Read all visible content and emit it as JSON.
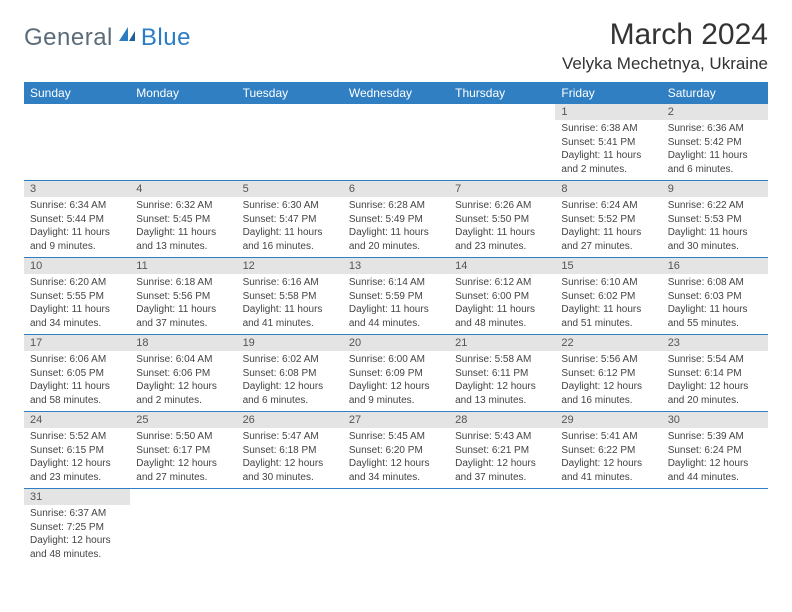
{
  "logo": {
    "text1": "General",
    "text2": "Blue"
  },
  "title": "March 2024",
  "location": "Velyka Mechetnya, Ukraine",
  "colors": {
    "header_bg": "#2f7fc2",
    "header_text": "#ffffff",
    "daynum_bg": "#e4e4e4",
    "row_border": "#2f7fc2",
    "body_text": "#444444",
    "logo_gray": "#5a6b7a",
    "logo_blue": "#2b7cc4"
  },
  "weekdays": [
    "Sunday",
    "Monday",
    "Tuesday",
    "Wednesday",
    "Thursday",
    "Friday",
    "Saturday"
  ],
  "weeks": [
    [
      {
        "n": "",
        "sr": "",
        "ss": "",
        "dl": ""
      },
      {
        "n": "",
        "sr": "",
        "ss": "",
        "dl": ""
      },
      {
        "n": "",
        "sr": "",
        "ss": "",
        "dl": ""
      },
      {
        "n": "",
        "sr": "",
        "ss": "",
        "dl": ""
      },
      {
        "n": "",
        "sr": "",
        "ss": "",
        "dl": ""
      },
      {
        "n": "1",
        "sr": "Sunrise: 6:38 AM",
        "ss": "Sunset: 5:41 PM",
        "dl": "Daylight: 11 hours and 2 minutes."
      },
      {
        "n": "2",
        "sr": "Sunrise: 6:36 AM",
        "ss": "Sunset: 5:42 PM",
        "dl": "Daylight: 11 hours and 6 minutes."
      }
    ],
    [
      {
        "n": "3",
        "sr": "Sunrise: 6:34 AM",
        "ss": "Sunset: 5:44 PM",
        "dl": "Daylight: 11 hours and 9 minutes."
      },
      {
        "n": "4",
        "sr": "Sunrise: 6:32 AM",
        "ss": "Sunset: 5:45 PM",
        "dl": "Daylight: 11 hours and 13 minutes."
      },
      {
        "n": "5",
        "sr": "Sunrise: 6:30 AM",
        "ss": "Sunset: 5:47 PM",
        "dl": "Daylight: 11 hours and 16 minutes."
      },
      {
        "n": "6",
        "sr": "Sunrise: 6:28 AM",
        "ss": "Sunset: 5:49 PM",
        "dl": "Daylight: 11 hours and 20 minutes."
      },
      {
        "n": "7",
        "sr": "Sunrise: 6:26 AM",
        "ss": "Sunset: 5:50 PM",
        "dl": "Daylight: 11 hours and 23 minutes."
      },
      {
        "n": "8",
        "sr": "Sunrise: 6:24 AM",
        "ss": "Sunset: 5:52 PM",
        "dl": "Daylight: 11 hours and 27 minutes."
      },
      {
        "n": "9",
        "sr": "Sunrise: 6:22 AM",
        "ss": "Sunset: 5:53 PM",
        "dl": "Daylight: 11 hours and 30 minutes."
      }
    ],
    [
      {
        "n": "10",
        "sr": "Sunrise: 6:20 AM",
        "ss": "Sunset: 5:55 PM",
        "dl": "Daylight: 11 hours and 34 minutes."
      },
      {
        "n": "11",
        "sr": "Sunrise: 6:18 AM",
        "ss": "Sunset: 5:56 PM",
        "dl": "Daylight: 11 hours and 37 minutes."
      },
      {
        "n": "12",
        "sr": "Sunrise: 6:16 AM",
        "ss": "Sunset: 5:58 PM",
        "dl": "Daylight: 11 hours and 41 minutes."
      },
      {
        "n": "13",
        "sr": "Sunrise: 6:14 AM",
        "ss": "Sunset: 5:59 PM",
        "dl": "Daylight: 11 hours and 44 minutes."
      },
      {
        "n": "14",
        "sr": "Sunrise: 6:12 AM",
        "ss": "Sunset: 6:00 PM",
        "dl": "Daylight: 11 hours and 48 minutes."
      },
      {
        "n": "15",
        "sr": "Sunrise: 6:10 AM",
        "ss": "Sunset: 6:02 PM",
        "dl": "Daylight: 11 hours and 51 minutes."
      },
      {
        "n": "16",
        "sr": "Sunrise: 6:08 AM",
        "ss": "Sunset: 6:03 PM",
        "dl": "Daylight: 11 hours and 55 minutes."
      }
    ],
    [
      {
        "n": "17",
        "sr": "Sunrise: 6:06 AM",
        "ss": "Sunset: 6:05 PM",
        "dl": "Daylight: 11 hours and 58 minutes."
      },
      {
        "n": "18",
        "sr": "Sunrise: 6:04 AM",
        "ss": "Sunset: 6:06 PM",
        "dl": "Daylight: 12 hours and 2 minutes."
      },
      {
        "n": "19",
        "sr": "Sunrise: 6:02 AM",
        "ss": "Sunset: 6:08 PM",
        "dl": "Daylight: 12 hours and 6 minutes."
      },
      {
        "n": "20",
        "sr": "Sunrise: 6:00 AM",
        "ss": "Sunset: 6:09 PM",
        "dl": "Daylight: 12 hours and 9 minutes."
      },
      {
        "n": "21",
        "sr": "Sunrise: 5:58 AM",
        "ss": "Sunset: 6:11 PM",
        "dl": "Daylight: 12 hours and 13 minutes."
      },
      {
        "n": "22",
        "sr": "Sunrise: 5:56 AM",
        "ss": "Sunset: 6:12 PM",
        "dl": "Daylight: 12 hours and 16 minutes."
      },
      {
        "n": "23",
        "sr": "Sunrise: 5:54 AM",
        "ss": "Sunset: 6:14 PM",
        "dl": "Daylight: 12 hours and 20 minutes."
      }
    ],
    [
      {
        "n": "24",
        "sr": "Sunrise: 5:52 AM",
        "ss": "Sunset: 6:15 PM",
        "dl": "Daylight: 12 hours and 23 minutes."
      },
      {
        "n": "25",
        "sr": "Sunrise: 5:50 AM",
        "ss": "Sunset: 6:17 PM",
        "dl": "Daylight: 12 hours and 27 minutes."
      },
      {
        "n": "26",
        "sr": "Sunrise: 5:47 AM",
        "ss": "Sunset: 6:18 PM",
        "dl": "Daylight: 12 hours and 30 minutes."
      },
      {
        "n": "27",
        "sr": "Sunrise: 5:45 AM",
        "ss": "Sunset: 6:20 PM",
        "dl": "Daylight: 12 hours and 34 minutes."
      },
      {
        "n": "28",
        "sr": "Sunrise: 5:43 AM",
        "ss": "Sunset: 6:21 PM",
        "dl": "Daylight: 12 hours and 37 minutes."
      },
      {
        "n": "29",
        "sr": "Sunrise: 5:41 AM",
        "ss": "Sunset: 6:22 PM",
        "dl": "Daylight: 12 hours and 41 minutes."
      },
      {
        "n": "30",
        "sr": "Sunrise: 5:39 AM",
        "ss": "Sunset: 6:24 PM",
        "dl": "Daylight: 12 hours and 44 minutes."
      }
    ],
    [
      {
        "n": "31",
        "sr": "Sunrise: 6:37 AM",
        "ss": "Sunset: 7:25 PM",
        "dl": "Daylight: 12 hours and 48 minutes."
      },
      {
        "n": "",
        "sr": "",
        "ss": "",
        "dl": ""
      },
      {
        "n": "",
        "sr": "",
        "ss": "",
        "dl": ""
      },
      {
        "n": "",
        "sr": "",
        "ss": "",
        "dl": ""
      },
      {
        "n": "",
        "sr": "",
        "ss": "",
        "dl": ""
      },
      {
        "n": "",
        "sr": "",
        "ss": "",
        "dl": ""
      },
      {
        "n": "",
        "sr": "",
        "ss": "",
        "dl": ""
      }
    ]
  ]
}
